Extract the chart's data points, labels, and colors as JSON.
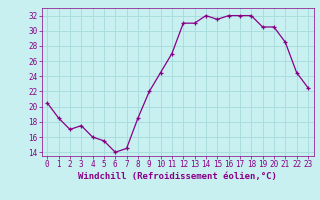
{
  "x": [
    0,
    1,
    2,
    3,
    4,
    5,
    6,
    7,
    8,
    9,
    10,
    11,
    12,
    13,
    14,
    15,
    16,
    17,
    18,
    19,
    20,
    21,
    22,
    23
  ],
  "y": [
    20.5,
    18.5,
    17.0,
    17.5,
    16.0,
    15.5,
    14.0,
    14.5,
    18.5,
    22.0,
    24.5,
    27.0,
    31.0,
    31.0,
    32.0,
    31.5,
    32.0,
    32.0,
    32.0,
    30.5,
    30.5,
    28.5,
    24.5,
    22.5
  ],
  "line_color": "#880088",
  "marker": "+",
  "markersize": 3,
  "linewidth": 0.9,
  "xlabel": "Windchill (Refroidissement éolien,°C)",
  "xlabel_fontsize": 6.5,
  "bg_color": "#c8f0f0",
  "grid_color": "#aadddd",
  "yticks": [
    14,
    16,
    18,
    20,
    22,
    24,
    26,
    28,
    30,
    32
  ],
  "xticks": [
    0,
    1,
    2,
    3,
    4,
    5,
    6,
    7,
    8,
    9,
    10,
    11,
    12,
    13,
    14,
    15,
    16,
    17,
    18,
    19,
    20,
    21,
    22,
    23
  ],
  "ylim": [
    13.5,
    33.0
  ],
  "xlim": [
    -0.5,
    23.5
  ],
  "tick_fontsize": 5.5,
  "tick_color": "#880088"
}
